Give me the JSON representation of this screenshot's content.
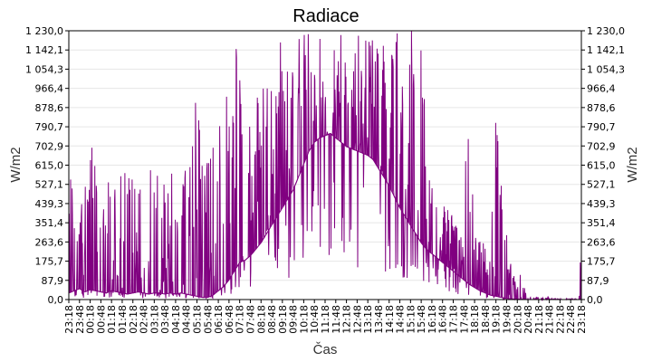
{
  "chart_data": {
    "type": "line",
    "title": "Radiace",
    "xlabel": "Čas",
    "ylabel": "W/m2",
    "ylim": [
      0,
      1230
    ],
    "y_ticks": [
      "0,0",
      "87,9",
      "175,7",
      "263,6",
      "351,4",
      "439,3",
      "527,1",
      "615,0",
      "702,9",
      "790,7",
      "878,6",
      "966,4",
      "1 054,3",
      "1 142,1",
      "1 230,0"
    ],
    "y_tick_values": [
      0,
      87.9,
      175.7,
      263.6,
      351.4,
      439.3,
      527.1,
      615.0,
      702.9,
      790.7,
      878.6,
      966.4,
      1054.3,
      1142.1,
      1230.0
    ],
    "x_ticks": [
      "23:18",
      "23:48",
      "00:18",
      "00:48",
      "01:18",
      "01:48",
      "02:18",
      "02:48",
      "03:18",
      "03:48",
      "04:18",
      "04:48",
      "05:18",
      "05:48",
      "06:18",
      "06:48",
      "07:18",
      "07:48",
      "08:18",
      "08:48",
      "09:18",
      "09:48",
      "10:18",
      "10:48",
      "11:18",
      "11:48",
      "12:18",
      "12:48",
      "13:18",
      "13:48",
      "14:18",
      "14:48",
      "15:18",
      "15:48",
      "16:18",
      "16:48",
      "17:18",
      "17:48",
      "18:18",
      "18:48",
      "19:18",
      "19:48",
      "20:18",
      "20:48",
      "21:18",
      "21:48",
      "22:18",
      "22:48",
      "23:18"
    ],
    "grid": true,
    "legend": "none",
    "color": "#800080",
    "series": [
      {
        "x_minutes": [
          0,
          15,
          30,
          45,
          60,
          75,
          90,
          105,
          120,
          135,
          150,
          165,
          180,
          195,
          210,
          225,
          240,
          255,
          270,
          285,
          300,
          315,
          330,
          345,
          360,
          375,
          390,
          405,
          420,
          435,
          450,
          465,
          480,
          495,
          510,
          525,
          540,
          555,
          570,
          585,
          600,
          615,
          630,
          645,
          660,
          675,
          690,
          705,
          720,
          735,
          750,
          765,
          780,
          795,
          810,
          825,
          840,
          855,
          870,
          885,
          900,
          915,
          930,
          945,
          960,
          975,
          990,
          1005,
          1020,
          1035,
          1050,
          1065,
          1080,
          1095,
          1110,
          1125,
          1140,
          1155,
          1170,
          1185,
          1200,
          1215,
          1230,
          1245,
          1260,
          1275,
          1290,
          1305,
          1320,
          1335,
          1350,
          1365,
          1380,
          1395,
          1410,
          1425,
          1440
        ],
        "base": [
          30,
          40,
          50,
          35,
          45,
          40,
          35,
          30,
          40,
          35,
          30,
          25,
          30,
          35,
          30,
          25,
          30,
          30,
          25,
          30,
          25,
          30,
          25,
          20,
          15,
          10,
          10,
          20,
          40,
          60,
          90,
          130,
          170,
          180,
          200,
          230,
          260,
          300,
          340,
          380,
          420,
          460,
          500,
          560,
          620,
          680,
          720,
          740,
          750,
          760,
          740,
          720,
          700,
          690,
          680,
          670,
          660,
          640,
          600,
          560,
          520,
          470,
          420,
          380,
          340,
          300,
          260,
          230,
          210,
          190,
          170,
          150,
          130,
          110,
          90,
          70,
          55,
          40,
          30,
          20,
          15,
          10,
          5,
          3,
          2,
          1,
          0,
          0,
          0,
          0,
          0,
          0,
          0,
          0,
          0,
          0,
          0
        ],
        "spike_high": [
          600,
          650,
          620,
          600,
          990,
          600,
          590,
          600,
          600,
          610,
          600,
          610,
          600,
          610,
          620,
          600,
          610,
          610,
          620,
          620,
          630,
          630,
          610,
          640,
          1230,
          700,
          690,
          740,
          800,
          900,
          980,
          1230,
          1230,
          900,
          900,
          980,
          1000,
          1230,
          1100,
          1230,
          1230,
          1230,
          1100,
          1230,
          1230,
          1230,
          1230,
          1230,
          1230,
          1230,
          1150,
          1230,
          1230,
          1000,
          1230,
          1230,
          1230,
          1230,
          1230,
          1230,
          1230,
          1230,
          1230,
          1230,
          1230,
          1230,
          1230,
          700,
          650,
          600,
          520,
          420,
          380,
          350,
          700,
          860,
          400,
          300,
          250,
          250,
          860,
          600,
          300,
          200,
          150,
          100,
          40,
          20,
          10,
          10,
          10,
          5,
          5,
          5,
          5,
          5,
          250
        ]
      }
    ]
  }
}
